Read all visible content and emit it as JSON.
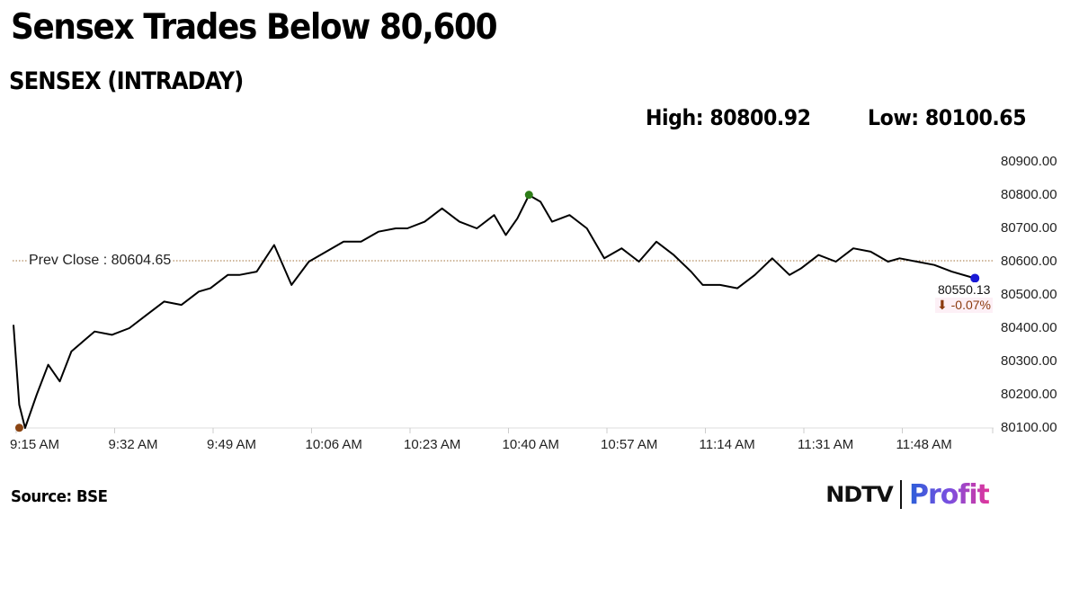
{
  "header": {
    "title": "Sensex Trades Below 80,600",
    "subtitle": "SENSEX (INTRADAY)",
    "high_label": "High: 80800.92",
    "low_label": "Low: 80100.65"
  },
  "annotations": {
    "prev_close_label": "Prev Close : 80604.65",
    "last_value": "80550.13",
    "last_change": "⬇ -0.07%"
  },
  "footer": {
    "source": "Source: BSE",
    "logo_left": "NDTV",
    "logo_right": "Profit"
  },
  "colors": {
    "line": "#000000",
    "prev_close_line": "#a0703a",
    "high_marker": "#2e7d18",
    "low_marker": "#8b4513",
    "last_marker": "#1a1ad6",
    "change_negative": "#8b3a0e",
    "gridline": "#dddddd"
  },
  "axis": {
    "y_ticks": [
      "80900.00",
      "80800.00",
      "80700.00",
      "80600.00",
      "80500.00",
      "80400.00",
      "80300.00",
      "80200.00",
      "80100.00"
    ],
    "x_ticks": [
      "9:15 AM",
      "9:32 AM",
      "9:49 AM",
      "10:06 AM",
      "10:23 AM",
      "10:40 AM",
      "10:57 AM",
      "11:14 AM",
      "11:31 AM",
      "11:48 AM"
    ]
  },
  "chart_data": {
    "type": "line",
    "title": "SENSEX (INTRADAY)",
    "xlabel": "",
    "ylabel": "",
    "ylim": [
      80100,
      80900
    ],
    "grid": false,
    "legend": "none",
    "x_tick_labels": [
      "9:15 AM",
      "9:32 AM",
      "9:49 AM",
      "10:06 AM",
      "10:23 AM",
      "10:40 AM",
      "10:57 AM",
      "11:14 AM",
      "11:31 AM",
      "11:48 AM"
    ],
    "y_tick_labels": [
      "80100.00",
      "80200.00",
      "80300.00",
      "80400.00",
      "80500.00",
      "80600.00",
      "80700.00",
      "80800.00",
      "80900.00"
    ],
    "reference_lines": [
      {
        "name": "Prev Close",
        "value": 80604.65
      }
    ],
    "high": {
      "value": 80800.92,
      "time": "10:44 AM"
    },
    "low": {
      "value": 80100.65,
      "time": "9:16 AM"
    },
    "last": {
      "value": 80550.13,
      "change_pct": -0.07,
      "time": "12:01 PM"
    },
    "series": [
      {
        "name": "SENSEX",
        "x": [
          "9:15",
          "9:16",
          "9:17",
          "9:19",
          "9:21",
          "9:23",
          "9:25",
          "9:27",
          "9:29",
          "9:32",
          "9:35",
          "9:38",
          "9:41",
          "9:44",
          "9:47",
          "9:49",
          "9:52",
          "9:54",
          "9:57",
          "10:00",
          "10:03",
          "10:06",
          "10:09",
          "10:12",
          "10:15",
          "10:18",
          "10:21",
          "10:23",
          "10:26",
          "10:29",
          "10:32",
          "10:35",
          "10:38",
          "10:40",
          "10:42",
          "10:44",
          "10:46",
          "10:48",
          "10:51",
          "10:54",
          "10:57",
          "11:00",
          "11:03",
          "11:06",
          "11:09",
          "11:12",
          "11:14",
          "11:17",
          "11:20",
          "11:23",
          "11:26",
          "11:29",
          "11:31",
          "11:34",
          "11:37",
          "11:40",
          "11:43",
          "11:46",
          "11:48",
          "11:51",
          "11:54",
          "11:57",
          "12:01"
        ],
        "values": [
          80410,
          80170,
          80100,
          80200,
          80290,
          80240,
          80330,
          80360,
          80390,
          80380,
          80400,
          80440,
          80480,
          80470,
          80510,
          80520,
          80560,
          80560,
          80570,
          80650,
          80530,
          80600,
          80630,
          80660,
          80660,
          80690,
          80700,
          80700,
          80720,
          80760,
          80720,
          80700,
          80740,
          80680,
          80730,
          80800,
          80780,
          80720,
          80740,
          80700,
          80610,
          80640,
          80600,
          80660,
          80620,
          80570,
          80530,
          80530,
          80520,
          80560,
          80610,
          80560,
          80580,
          80620,
          80600,
          80640,
          80630,
          80600,
          80610,
          80600,
          80590,
          80570,
          80550
        ]
      }
    ]
  }
}
